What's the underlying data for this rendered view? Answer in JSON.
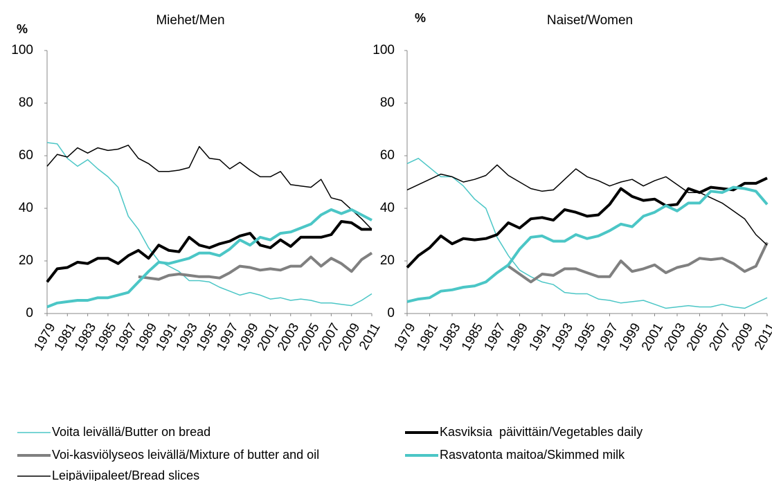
{
  "chart_data": [
    {
      "type": "line",
      "title": "Miehet/Men",
      "y_label": "%",
      "x": [
        1979,
        1980,
        1981,
        1982,
        1983,
        1984,
        1985,
        1986,
        1987,
        1988,
        1989,
        1990,
        1991,
        1992,
        1993,
        1994,
        1995,
        1996,
        1997,
        1998,
        1999,
        2000,
        2001,
        2002,
        2003,
        2004,
        2005,
        2006,
        2007,
        2008,
        2009,
        2010,
        2011
      ],
      "xlim": [
        1979,
        2011
      ],
      "xticks": [
        1979,
        1981,
        1983,
        1985,
        1987,
        1989,
        1991,
        1993,
        1995,
        1997,
        1999,
        2001,
        2003,
        2005,
        2007,
        2009,
        2011
      ],
      "ylim": [
        0,
        100
      ],
      "yticks": [
        0,
        20,
        40,
        60,
        80,
        100
      ],
      "series": [
        {
          "name": "Voita leivällä/Butter on bread",
          "color": "#4bc6c6",
          "line_width": 1.5,
          "values": [
            65,
            64.5,
            59,
            56,
            58.5,
            55,
            52,
            48,
            37,
            32,
            25,
            20,
            18,
            16,
            12.5,
            12.5,
            12,
            10,
            8.5,
            7,
            8,
            7,
            5.5,
            6,
            5,
            5.5,
            5,
            4,
            4,
            3.5,
            3,
            5,
            7.5
          ]
        },
        {
          "name": "Voi-kasviölyseos leivällä/Mixture of butter and oil",
          "color": "#808080",
          "line_width": 4,
          "values": [
            null,
            null,
            null,
            null,
            null,
            null,
            null,
            null,
            null,
            14,
            13.5,
            13,
            14.5,
            15,
            14.5,
            14,
            14,
            13.5,
            15.5,
            18,
            17.5,
            16.5,
            17,
            16.5,
            18,
            18,
            21.5,
            18,
            21,
            19,
            16,
            20.5,
            23
          ]
        },
        {
          "name": "Leipäviipaleet/Bread slices",
          "color": "#000000",
          "line_width": 1.5,
          "values": [
            56,
            60.5,
            59.5,
            63,
            61,
            63,
            62,
            62.5,
            64,
            59,
            57,
            54,
            54,
            54.5,
            55.5,
            63.5,
            59,
            58.5,
            55,
            57.5,
            54.5,
            52,
            52,
            54,
            49,
            48.5,
            48,
            51,
            44,
            43,
            39.5,
            36,
            32
          ]
        },
        {
          "name": "Kasviksia  päivittäin/Vegetables daily",
          "color": "#000000",
          "line_width": 4,
          "values": [
            12,
            17,
            17.5,
            19.5,
            19,
            21,
            21,
            19,
            22,
            24,
            21,
            26,
            24,
            23.5,
            29,
            26,
            25,
            26.5,
            27.5,
            29.5,
            30.5,
            26,
            25,
            28,
            25.5,
            29,
            29,
            29,
            30,
            35,
            34.5,
            32,
            32
          ]
        },
        {
          "name": "Rasvatonta maitoa/Skimmed milk",
          "color": "#4bc6c6",
          "line_width": 4,
          "values": [
            2.5,
            4,
            4.5,
            5,
            5,
            6,
            6,
            7,
            8,
            12,
            16,
            19.5,
            19,
            20,
            21,
            23,
            23,
            22,
            24.5,
            28,
            26,
            29,
            28,
            30.5,
            31,
            32.5,
            34,
            37.5,
            39.5,
            38,
            39.5,
            37.5,
            35.5
          ]
        }
      ]
    },
    {
      "type": "line",
      "title": "Naiset/Women",
      "y_label": "%",
      "x": [
        1979,
        1980,
        1981,
        1982,
        1983,
        1984,
        1985,
        1986,
        1987,
        1988,
        1989,
        1990,
        1991,
        1992,
        1993,
        1994,
        1995,
        1996,
        1997,
        1998,
        1999,
        2000,
        2001,
        2002,
        2003,
        2004,
        2005,
        2006,
        2007,
        2008,
        2009,
        2010,
        2011
      ],
      "xlim": [
        1979,
        2011
      ],
      "xticks": [
        1979,
        1981,
        1983,
        1985,
        1987,
        1989,
        1991,
        1993,
        1995,
        1997,
        1999,
        2001,
        2003,
        2005,
        2007,
        2009,
        2011
      ],
      "ylim": [
        0,
        100
      ],
      "yticks": [
        0,
        20,
        40,
        60,
        80,
        100
      ],
      "series": [
        {
          "color": "#4bc6c6",
          "line_width": 1.5,
          "values": [
            57,
            59,
            55.5,
            52,
            52,
            48.5,
            43.5,
            40,
            29,
            22,
            16.5,
            14,
            12,
            11,
            8,
            7.5,
            7.5,
            5.5,
            5,
            4,
            4.5,
            5,
            3.5,
            2,
            2.5,
            3,
            2.5,
            2.5,
            3.5,
            2.5,
            2,
            4,
            6
          ]
        },
        {
          "color": "#808080",
          "line_width": 4,
          "values": [
            null,
            null,
            null,
            null,
            null,
            null,
            null,
            null,
            null,
            18,
            15,
            12,
            15,
            14.5,
            17,
            17,
            15.5,
            14,
            14,
            20,
            16,
            17,
            18.5,
            15.5,
            17.5,
            18.5,
            21,
            20.5,
            21,
            19,
            16,
            18,
            27
          ]
        },
        {
          "color": "#000000",
          "line_width": 1.5,
          "values": [
            47,
            49,
            51,
            53,
            52,
            50,
            51,
            52.5,
            56.5,
            52.5,
            50,
            47.5,
            46.5,
            47,
            51,
            55,
            52,
            50.5,
            48.5,
            50,
            51,
            48.5,
            50.5,
            52,
            49,
            46,
            46,
            44,
            42,
            39,
            36,
            30,
            26
          ]
        },
        {
          "color": "#000000",
          "line_width": 4,
          "values": [
            17.5,
            22,
            25,
            29.5,
            26.5,
            28.5,
            28,
            28.5,
            30,
            34.5,
            32.5,
            36,
            36.5,
            35.5,
            39.5,
            38.5,
            37,
            37.5,
            41.5,
            47.5,
            44.5,
            43,
            43.5,
            41,
            41.5,
            47.5,
            46,
            48,
            47.5,
            47,
            49.5,
            49.5,
            51.5
          ]
        },
        {
          "color": "#4bc6c6",
          "line_width": 4,
          "values": [
            4.5,
            5.5,
            6,
            8.5,
            9,
            10,
            10.5,
            12,
            15.5,
            18.5,
            24.5,
            29,
            29.5,
            27.5,
            27.5,
            30,
            28.5,
            29.5,
            31.5,
            34,
            33,
            37,
            38.5,
            41,
            39,
            42,
            42,
            46.5,
            46,
            48,
            47.5,
            46.5,
            41.5
          ]
        }
      ]
    }
  ]
}
